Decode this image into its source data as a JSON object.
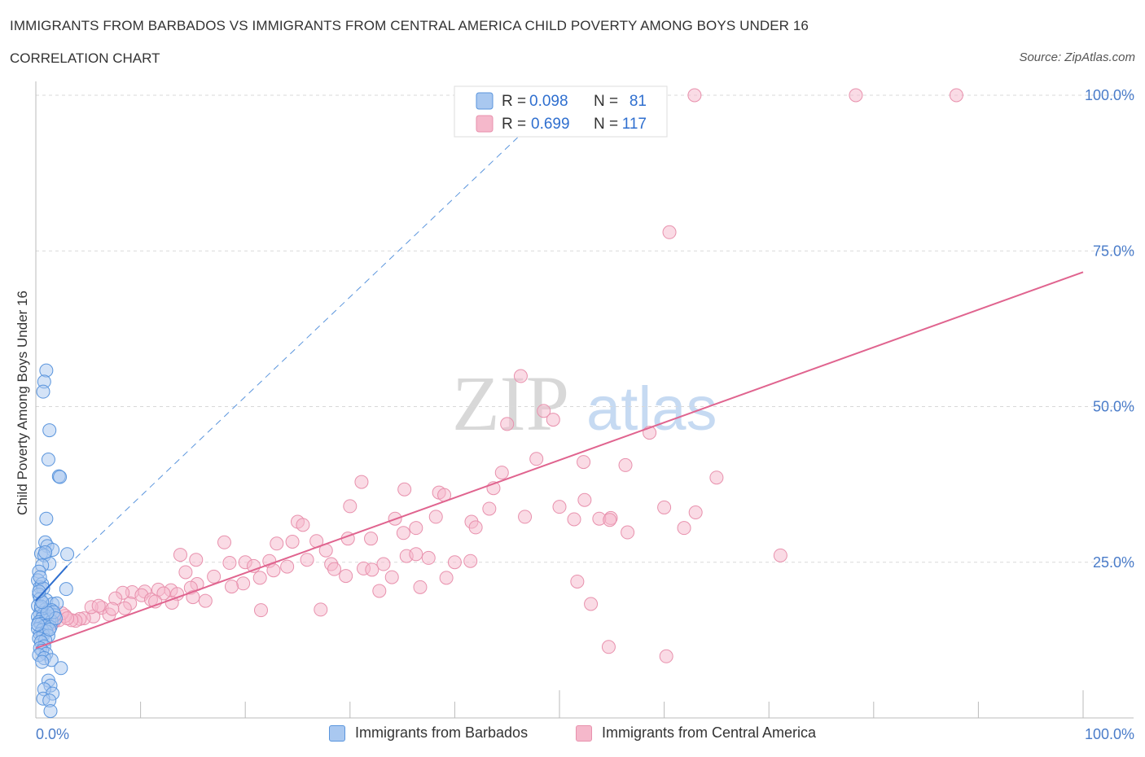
{
  "title": "IMMIGRANTS FROM BARBADOS VS IMMIGRANTS FROM CENTRAL AMERICA CHILD POVERTY AMONG BOYS UNDER 16",
  "subtitle": "CORRELATION CHART",
  "source": "Source: ZipAtlas.com",
  "watermark": {
    "zip": "ZIP",
    "atlas": "atlas"
  },
  "colors": {
    "blue_fill": "#a9c8f0",
    "blue_stroke": "#5a95dd",
    "blue_line": "#2f6fcf",
    "pink_fill": "#f5b8cb",
    "pink_stroke": "#e891ad",
    "pink_line": "#e0648f",
    "tick_label": "#4a7cc9",
    "grid": "#d9d9d9"
  },
  "legend": {
    "r_label": "R =",
    "n_label": "N =",
    "rows": [
      {
        "series": "blue",
        "r": "0.098",
        "n": "81"
      },
      {
        "series": "pink",
        "r": "0.699",
        "n": "117"
      }
    ]
  },
  "bottom_legend": {
    "barbados": "Immigrants from Barbados",
    "central_america": "Immigrants from Central America"
  },
  "chart_data": {
    "type": "scatter",
    "xlabel": "",
    "ylabel": "Child Poverty Among Boys Under 16",
    "xlim": [
      0,
      100
    ],
    "ylim": [
      0,
      100
    ],
    "x_tick_labels": [
      "0.0%",
      "100.0%"
    ],
    "y_tick_labels": [
      {
        "value": 25,
        "label": "25.0%"
      },
      {
        "value": 50,
        "label": "50.0%"
      },
      {
        "value": 75,
        "label": "75.0%"
      },
      {
        "value": 100,
        "label": "100.0%"
      }
    ],
    "grid": true,
    "series": [
      {
        "name": "Immigrants from Barbados",
        "color": "blue",
        "R": 0.098,
        "N": 81,
        "trend_solid": [
          [
            0,
            18.8
          ],
          [
            3.0,
            24.4
          ]
        ],
        "trend_dashed": [
          [
            3.0,
            24.4
          ],
          [
            46.0,
            93.2
          ]
        ],
        "points": [
          [
            1.0,
            55.8
          ],
          [
            0.8,
            54.0
          ],
          [
            0.7,
            52.4
          ],
          [
            1.3,
            46.2
          ],
          [
            1.2,
            41.5
          ],
          [
            2.2,
            38.8
          ],
          [
            2.3,
            38.7
          ],
          [
            1.0,
            32.0
          ],
          [
            0.9,
            28.2
          ],
          [
            1.1,
            27.6
          ],
          [
            1.6,
            27.0
          ],
          [
            0.5,
            26.4
          ],
          [
            0.8,
            26.1
          ],
          [
            3.0,
            26.3
          ],
          [
            1.3,
            24.8
          ],
          [
            0.6,
            24.5
          ],
          [
            0.3,
            23.5
          ],
          [
            0.2,
            22.1
          ],
          [
            0.4,
            21.0
          ],
          [
            0.6,
            21.5
          ],
          [
            0.7,
            20.8
          ],
          [
            2.9,
            20.7
          ],
          [
            0.3,
            19.8
          ],
          [
            0.4,
            19.1
          ],
          [
            1.0,
            18.9
          ],
          [
            1.6,
            18.3
          ],
          [
            2.0,
            18.4
          ],
          [
            0.2,
            18.0
          ],
          [
            0.5,
            17.6
          ],
          [
            0.9,
            17.4
          ],
          [
            1.2,
            17.2
          ],
          [
            1.5,
            17.3
          ],
          [
            0.4,
            16.8
          ],
          [
            0.7,
            16.6
          ],
          [
            1.0,
            16.4
          ],
          [
            1.8,
            16.5
          ],
          [
            0.2,
            16.2
          ],
          [
            0.6,
            16.0
          ],
          [
            1.3,
            15.8
          ],
          [
            0.9,
            15.6
          ],
          [
            0.3,
            15.4
          ],
          [
            1.5,
            15.5
          ],
          [
            0.5,
            15.1
          ],
          [
            1.1,
            14.9
          ],
          [
            0.8,
            14.7
          ],
          [
            1.4,
            14.6
          ],
          [
            0.2,
            14.3
          ],
          [
            0.6,
            14.1
          ],
          [
            1.0,
            13.9
          ],
          [
            0.4,
            13.5
          ],
          [
            0.7,
            13.3
          ],
          [
            1.2,
            13.2
          ],
          [
            0.3,
            12.8
          ],
          [
            0.9,
            12.5
          ],
          [
            0.5,
            12.2
          ],
          [
            0.8,
            11.5
          ],
          [
            0.4,
            11.2
          ],
          [
            0.6,
            10.8
          ],
          [
            1.0,
            10.3
          ],
          [
            0.3,
            10.1
          ],
          [
            0.8,
            9.6
          ],
          [
            1.5,
            9.3
          ],
          [
            0.6,
            9.0
          ],
          [
            2.4,
            8.0
          ],
          [
            1.2,
            6.0
          ],
          [
            1.4,
            5.2
          ],
          [
            0.8,
            4.6
          ],
          [
            1.6,
            3.9
          ],
          [
            0.7,
            3.1
          ],
          [
            1.3,
            2.8
          ],
          [
            1.4,
            1.1
          ],
          [
            0.5,
            17.9
          ],
          [
            1.7,
            17.0
          ],
          [
            0.2,
            15.0
          ],
          [
            1.9,
            16.0
          ],
          [
            0.4,
            22.6
          ],
          [
            0.9,
            26.6
          ],
          [
            1.1,
            16.9
          ],
          [
            0.6,
            18.6
          ],
          [
            1.3,
            14.2
          ],
          [
            0.3,
            20.3
          ]
        ]
      },
      {
        "name": "Immigrants from Central America",
        "color": "pink",
        "R": 0.699,
        "N": 117,
        "trend": [
          [
            0,
            11.2
          ],
          [
            100,
            71.6
          ]
        ],
        "points": [
          [
            62.9,
            100.0
          ],
          [
            78.3,
            100.0
          ],
          [
            87.9,
            100.0
          ],
          [
            60.5,
            78.0
          ],
          [
            46.3,
            54.9
          ],
          [
            48.5,
            49.3
          ],
          [
            49.4,
            47.9
          ],
          [
            45.0,
            47.2
          ],
          [
            58.6,
            45.8
          ],
          [
            47.8,
            41.6
          ],
          [
            52.3,
            41.1
          ],
          [
            56.3,
            40.6
          ],
          [
            44.5,
            39.4
          ],
          [
            65.0,
            38.6
          ],
          [
            31.1,
            37.9
          ],
          [
            35.2,
            36.7
          ],
          [
            38.5,
            36.2
          ],
          [
            39.0,
            35.8
          ],
          [
            43.7,
            36.9
          ],
          [
            52.4,
            35.0
          ],
          [
            30.0,
            34.0
          ],
          [
            43.3,
            33.6
          ],
          [
            46.7,
            32.3
          ],
          [
            54.9,
            32.1
          ],
          [
            60.0,
            33.8
          ],
          [
            50.0,
            33.9
          ],
          [
            25.0,
            31.5
          ],
          [
            25.5,
            31.0
          ],
          [
            34.3,
            32.0
          ],
          [
            38.2,
            32.3
          ],
          [
            41.6,
            31.5
          ],
          [
            51.4,
            31.9
          ],
          [
            53.8,
            32.0
          ],
          [
            54.8,
            31.8
          ],
          [
            61.9,
            30.5
          ],
          [
            35.1,
            29.7
          ],
          [
            36.3,
            30.5
          ],
          [
            42.0,
            30.6
          ],
          [
            56.5,
            29.8
          ],
          [
            63.0,
            33.0
          ],
          [
            18.0,
            28.2
          ],
          [
            23.0,
            28.0
          ],
          [
            24.5,
            28.3
          ],
          [
            26.8,
            28.4
          ],
          [
            29.8,
            28.8
          ],
          [
            32.0,
            28.8
          ],
          [
            22.3,
            25.2
          ],
          [
            25.9,
            25.4
          ],
          [
            20.0,
            25.0
          ],
          [
            18.5,
            24.9
          ],
          [
            15.3,
            25.4
          ],
          [
            13.8,
            26.2
          ],
          [
            14.3,
            23.4
          ],
          [
            28.2,
            24.7
          ],
          [
            27.7,
            26.9
          ],
          [
            35.4,
            26.0
          ],
          [
            36.3,
            26.3
          ],
          [
            37.5,
            25.7
          ],
          [
            33.2,
            24.7
          ],
          [
            29.6,
            22.8
          ],
          [
            31.3,
            24.0
          ],
          [
            32.1,
            23.8
          ],
          [
            36.7,
            21.0
          ],
          [
            39.2,
            22.5
          ],
          [
            51.7,
            21.9
          ],
          [
            40.0,
            25.0
          ],
          [
            24.0,
            24.3
          ],
          [
            28.5,
            23.9
          ],
          [
            20.8,
            24.4
          ],
          [
            22.7,
            23.7
          ],
          [
            17.0,
            22.7
          ],
          [
            21.4,
            22.5
          ],
          [
            19.8,
            21.6
          ],
          [
            18.7,
            21.1
          ],
          [
            15.4,
            21.5
          ],
          [
            14.8,
            20.9
          ],
          [
            12.9,
            20.5
          ],
          [
            11.7,
            20.6
          ],
          [
            10.4,
            20.3
          ],
          [
            12.2,
            20.0
          ],
          [
            9.2,
            20.2
          ],
          [
            8.3,
            20.1
          ],
          [
            10.1,
            19.7
          ],
          [
            13.5,
            19.9
          ],
          [
            15.0,
            19.4
          ],
          [
            16.2,
            18.8
          ],
          [
            11.0,
            19.0
          ],
          [
            7.6,
            19.2
          ],
          [
            9.0,
            18.4
          ],
          [
            11.4,
            18.7
          ],
          [
            13.0,
            18.5
          ],
          [
            8.5,
            17.6
          ],
          [
            6.3,
            17.7
          ],
          [
            7.0,
            16.6
          ],
          [
            5.5,
            16.3
          ],
          [
            4.6,
            16.0
          ],
          [
            4.2,
            15.9
          ],
          [
            3.8,
            15.6
          ],
          [
            3.4,
            15.7
          ],
          [
            2.8,
            16.4
          ],
          [
            2.2,
            15.7
          ],
          [
            1.7,
            15.4
          ],
          [
            2.5,
            16.8
          ],
          [
            1.5,
            15.1
          ],
          [
            3.0,
            16.0
          ],
          [
            5.3,
            17.8
          ],
          [
            7.3,
            17.5
          ],
          [
            6.0,
            18.0
          ],
          [
            21.5,
            17.3
          ],
          [
            27.2,
            17.4
          ],
          [
            53.0,
            18.3
          ],
          [
            71.1,
            26.1
          ],
          [
            54.7,
            11.4
          ],
          [
            60.2,
            9.9
          ],
          [
            41.5,
            25.2
          ],
          [
            34.0,
            22.6
          ],
          [
            32.8,
            20.4
          ]
        ]
      }
    ]
  }
}
